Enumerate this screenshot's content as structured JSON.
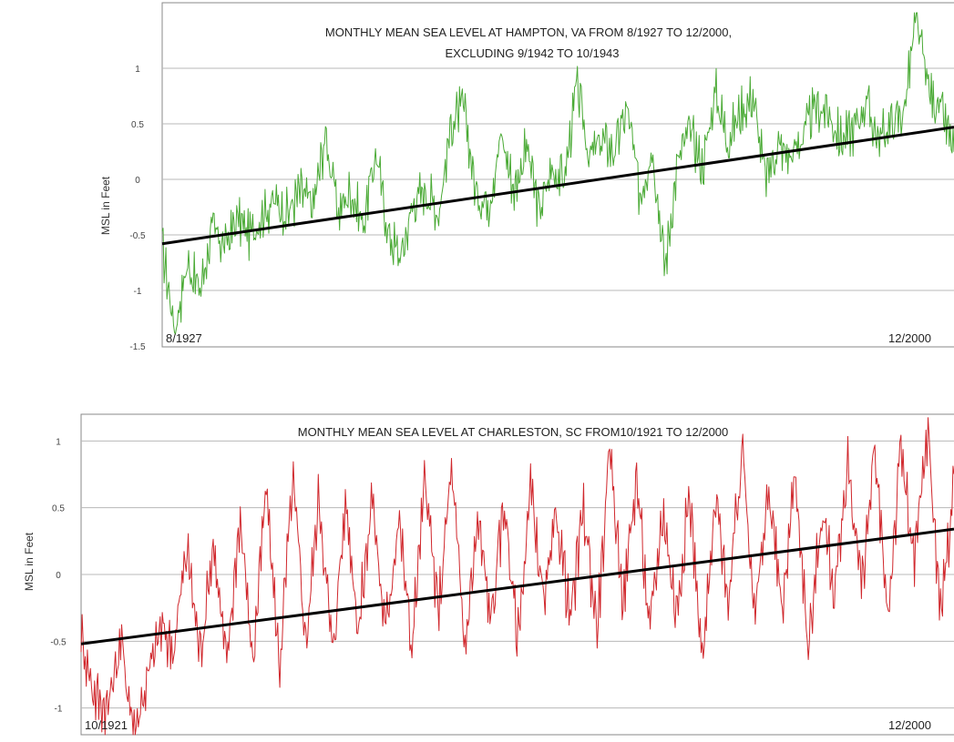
{
  "chart_data": [
    {
      "type": "line",
      "title": "MONTHLY MEAN SEA LEVEL AT HAMPTON, VA FROM 8/1927 TO 12/2000,",
      "subtitle": "EXCLUDING 9/1942 TO 10/1943",
      "ylabel": "MSL in Feet",
      "ylim": [
        -1.5,
        1.5
      ],
      "yticks": [
        {
          "v": 1,
          "label": "1"
        },
        {
          "v": 0.5,
          "label": "0.5"
        },
        {
          "v": 0,
          "label": "0"
        },
        {
          "v": -0.5,
          "label": "-0.5"
        },
        {
          "v": -1,
          "label": "-1"
        },
        {
          "v": -1.5,
          "label": "-1.5"
        }
      ],
      "start_label": "8/1927",
      "end_label": "12/2000",
      "grid": true,
      "colors": {
        "series": "#4aaa35",
        "trend": "#000000"
      },
      "trend": {
        "start": -0.58,
        "end": 0.47
      },
      "gap": {
        "from": "9/1942",
        "to": "10/1943"
      },
      "x_start": "1927-08",
      "x_end": "2000-12",
      "series_anchor_values": [
        -0.6,
        -1.35,
        -0.75,
        -1.0,
        -0.45,
        -0.6,
        -0.35,
        -0.5,
        -0.3,
        -0.2,
        -0.3,
        -0.1,
        -0.25,
        0.4,
        -0.3,
        -0.1,
        -0.4,
        0.25,
        -0.5,
        -0.7,
        -0.2,
        -0.1,
        -0.3,
        0.5,
        0.65,
        -0.15,
        -0.2,
        0.4,
        -0.1,
        0.3,
        -0.3,
        0.1,
        0.0,
        0.85,
        0.2,
        0.35,
        0.25,
        0.65,
        -0.15,
        0.3,
        -0.8,
        0.15,
        0.45,
        0.1,
        0.8,
        0.35,
        0.6,
        0.75,
        0.0,
        0.3,
        0.2,
        0.4,
        0.65,
        0.6,
        0.35,
        0.45,
        0.7,
        0.35,
        0.5,
        0.6,
        1.45,
        0.8,
        0.6,
        0.25
      ]
    },
    {
      "type": "line",
      "title": "MONTHLY MEAN SEA LEVEL AT CHARLESTON, SC FROM10/1921 TO 12/2000",
      "ylabel": "MSL in Feet",
      "ylim": [
        -1.2,
        1.2
      ],
      "yticks": [
        {
          "v": 1,
          "label": "1"
        },
        {
          "v": 0.5,
          "label": "0.5"
        },
        {
          "v": 0,
          "label": "0"
        },
        {
          "v": -0.5,
          "label": "-0.5"
        },
        {
          "v": -1,
          "label": "-1"
        }
      ],
      "start_label": "10/1921",
      "end_label": "12/2000",
      "grid": true,
      "colors": {
        "series": "#d0272c",
        "trend": "#000000"
      },
      "trend": {
        "start": -0.52,
        "end": 0.34
      },
      "x_start": "1921-10",
      "x_end": "2000-12",
      "series_anchor_values": [
        -0.45,
        -0.9,
        -1.0,
        -0.5,
        -1.15,
        -0.8,
        -0.4,
        -0.55,
        0.2,
        -0.6,
        0.25,
        -0.7,
        0.45,
        -0.65,
        0.65,
        -0.7,
        0.7,
        -0.5,
        0.6,
        -0.6,
        0.55,
        -0.4,
        0.6,
        -0.45,
        0.45,
        -0.55,
        0.7,
        -0.3,
        0.8,
        -0.55,
        0.4,
        -0.35,
        0.55,
        -0.5,
        0.65,
        -0.25,
        0.45,
        -0.35,
        0.5,
        -0.4,
        0.9,
        -0.2,
        0.75,
        -0.45,
        0.5,
        -0.3,
        0.6,
        -0.65,
        0.55,
        -0.2,
        0.95,
        -0.3,
        0.65,
        -0.3,
        0.8,
        -0.6,
        0.5,
        -0.15,
        0.85,
        -0.1,
        0.9,
        -0.3,
        0.95,
        0.05,
        1.1,
        -0.3,
        0.7
      ]
    }
  ]
}
